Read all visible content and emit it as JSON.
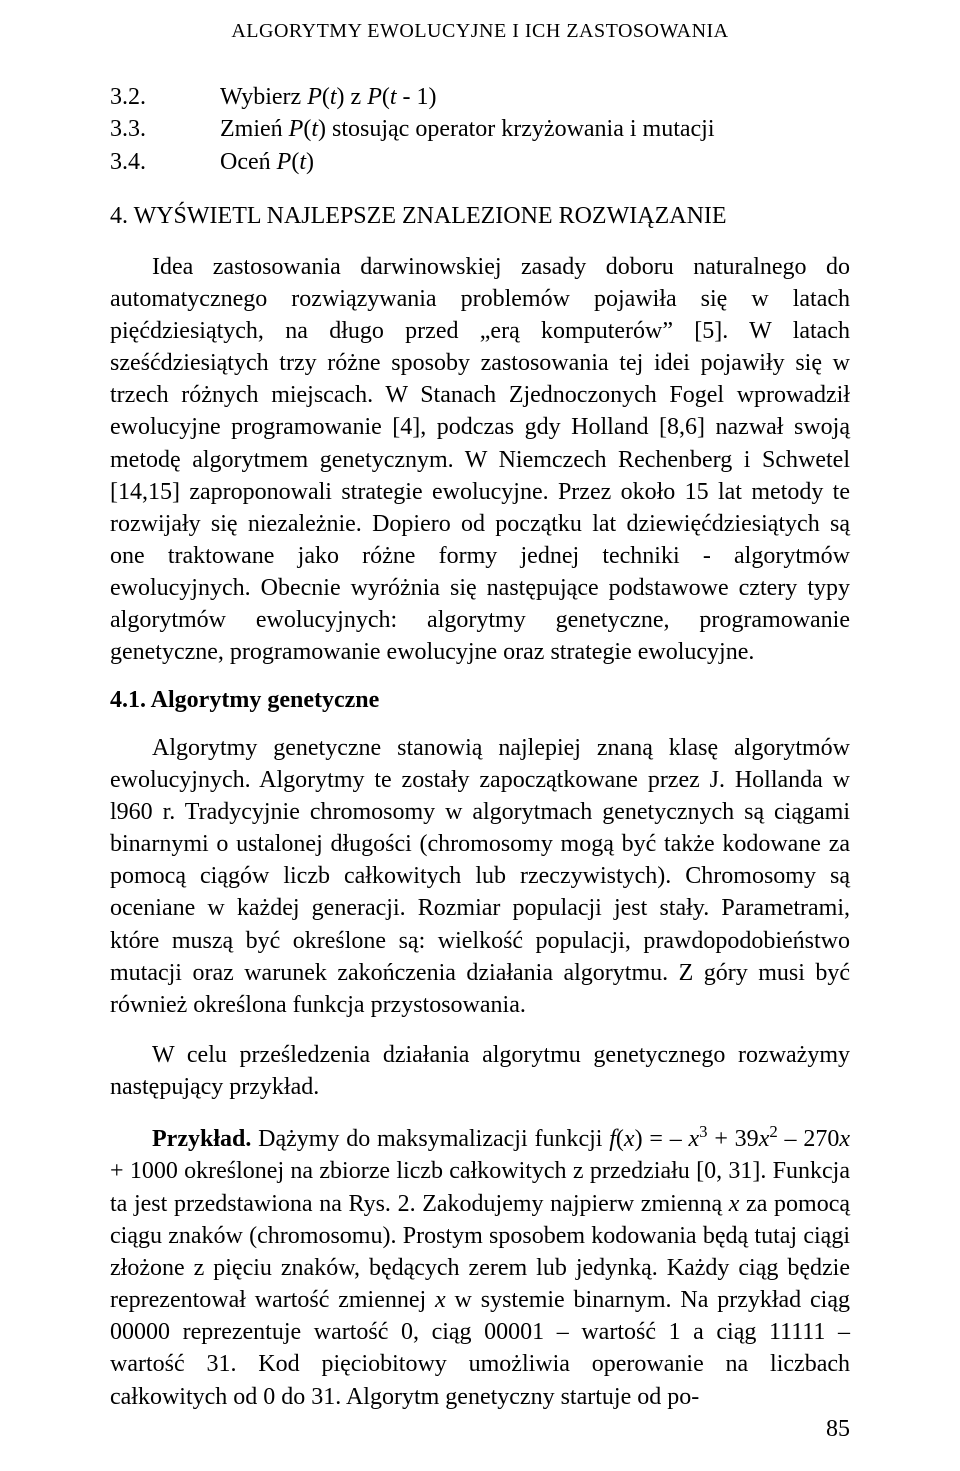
{
  "running_head": "ALGORYTMY EWOLUCYJNE I ICH ZASTOSOWANIA",
  "algo": {
    "r1": {
      "num": "3.2.",
      "text": "Wybierz <span class=\"it\">P</span>(<span class=\"it\">t</span>) z <span class=\"it\">P</span>(<span class=\"it\">t</span> - 1)"
    },
    "r2": {
      "num": "3.3.",
      "text": "Zmień <span class=\"it\">P</span>(<span class=\"it\">t</span>) stosując operator krzyżowania i mutacji"
    },
    "r3": {
      "num": "3.4.",
      "text": "Oceń <span class=\"it\">P</span>(<span class=\"it\">t</span>)"
    }
  },
  "section4_heading": "4. WYŚWIETL NAJLEPSZE ZNALEZIONE ROZWIĄZANIE",
  "para1": "Idea zastosowania darwinowskiej zasady doboru naturalnego do automatycznego rozwiązywania problemów pojawiła się w latach pięćdziesiątych, na długo przed „erą komputerów” [5]. W latach sześćdziesiątych trzy różne sposoby zastosowania tej idei pojawiły się w trzech różnych miejscach. W Stanach Zjednoczonych Fogel wprowadził ewolucyjne programowanie [4], podczas gdy Holland [8,6] nazwał swoją metodę algorytmem genetycznym. W Niemczech Rechenberg i Schwetel [14,15] zaproponowali strategie ewolucyjne. Przez około 15 lat metody te rozwijały się niezależnie. Dopiero od początku lat dziewięćdziesiątych są one traktowane jako różne formy jednej techniki - algorytmów ewolucyjnych. Obecnie wyróżnia się następujące podstawowe cztery typy algorytmów ewolucyjnych: algorytmy genetyczne, programowanie genetyczne, programowanie ewolucyjne oraz strategie ewolucyjne.",
  "sub41": "4.1. Algorytmy genetyczne",
  "para2": "Algorytmy genetyczne stanowią najlepiej znaną klasę algorytmów ewolucyjnych. Algorytmy te zostały zapoczątkowane przez J. Hollanda w l960 r. Tradycyjnie chromosomy w algorytmach genetycznych są ciągami binarnymi o ustalonej długości (chromosomy mogą być także kodowane za pomocą ciągów liczb całkowitych lub rzeczywistych). Chromosomy są oceniane w każdej generacji. Rozmiar populacji jest stały. Parametrami, które muszą być określone są: wielkość populacji, prawdopodobieństwo mutacji oraz warunek zakończenia działania algorytmu. Z góry musi być również określona funkcja przystosowania.",
  "para3": "W celu prześledzenia działania algorytmu genetycznego rozważymy następujący przykład.",
  "para4": "<b>Przykład.</b> Dążymy do maksymalizacji funkcji <span class=\"it\">f</span>(<span class=\"it\">x</span>) = – <span class=\"it\">x</span><sup>3</sup> + 39<span class=\"it\">x</span><sup>2</sup> – 270<span class=\"it\">x</span> + 1000 określonej na zbiorze liczb całkowitych z przedziału [0, 31]. Funkcja ta jest przedstawiona na Rys. 2. Zakodujemy najpierw zmienną <span class=\"it\">x</span> za pomocą ciągu znaków (chromosomu). Prostym sposobem kodowania będą tutaj ciągi złożone z pięciu znaków, będących zerem lub jedynką. Każdy ciąg będzie reprezentował wartość zmiennej <span class=\"it\">x</span> w systemie binarnym. Na przykład ciąg 00000 reprezentuje wartość 0, ciąg 00001 – wartość 1 a ciąg 11111 – wartość 31. Kod pięciobitowy umożliwia operowanie na liczbach całkowitych od 0 do 31. Algorytm genetyczny startuje od po-",
  "page_number": "85"
}
